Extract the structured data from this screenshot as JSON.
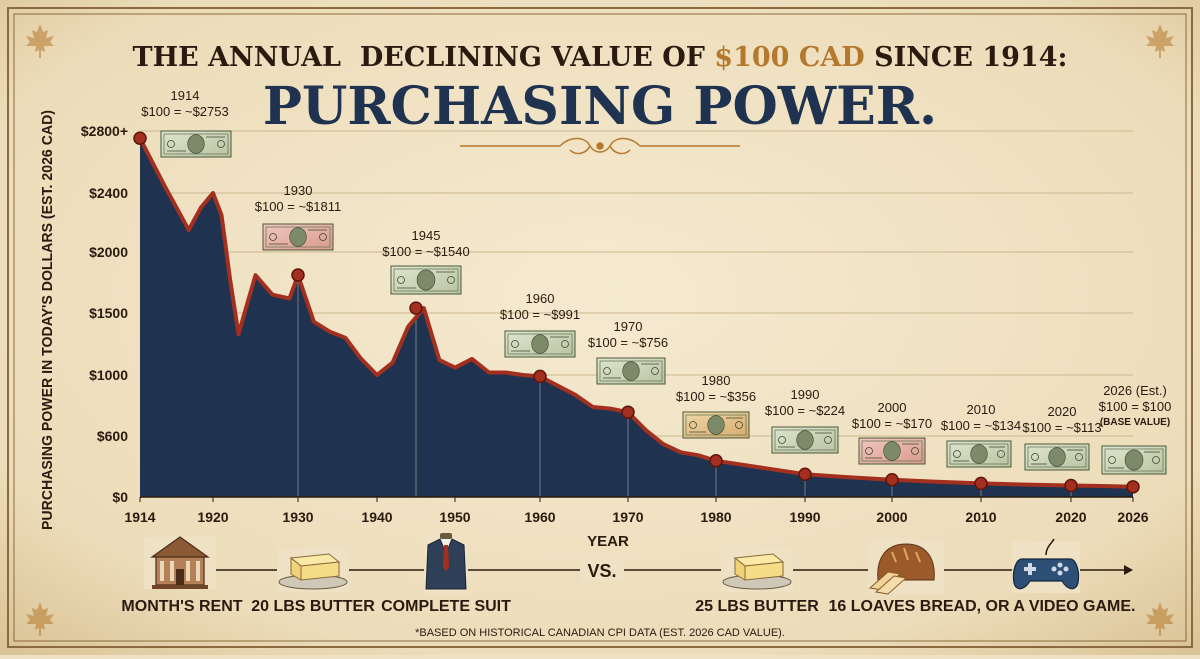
{
  "header": {
    "line1_prefix": "THE ANNUAL  DECLINING VALUE OF ",
    "line1_accent": "$100 CAD",
    "line1_suffix": " SINCE 1914:",
    "title": "PURCHASING POWER."
  },
  "colors": {
    "paper": "#efe2c4",
    "ink": "#2a1a10",
    "navy": "#1f3350",
    "line": "#a3301f",
    "accent": "#b5782c",
    "frame": "#8a6a3e"
  },
  "chart_data": {
    "type": "area",
    "title": "PURCHASING POWER.",
    "xlabel": "YEAR",
    "ylabel": "PURCHASING POWER IN TODAY'S DOLLARS (EST. 2026 CAD)",
    "ylim": [
      0,
      2800
    ],
    "xlim": [
      1914,
      2026
    ],
    "y_ticks": [
      {
        "value": 0,
        "label": "$0"
      },
      {
        "value": 600,
        "label": "$600"
      },
      {
        "value": 1000,
        "label": "$1000"
      },
      {
        "value": 1500,
        "label": "$1500"
      },
      {
        "value": 2000,
        "label": "$2000"
      },
      {
        "value": 2400,
        "label": "$2400"
      },
      {
        "value": 2800,
        "label": "$2800+"
      }
    ],
    "x_ticks": [
      1914,
      1920,
      1930,
      1940,
      1950,
      1960,
      1970,
      1980,
      1990,
      2000,
      2010,
      2020,
      2026
    ],
    "series": [
      {
        "name": "Purchasing power of $100 CAD",
        "x": [
          1914,
          1916,
          1918,
          1919,
          1920,
          1921,
          1922,
          1923,
          1925,
          1927,
          1929,
          1930,
          1932,
          1934,
          1936,
          1938,
          1940,
          1942,
          1944,
          1946,
          1948,
          1950,
          1952,
          1954,
          1956,
          1958,
          1960,
          1962,
          1964,
          1966,
          1968,
          1970,
          1972,
          1974,
          1976,
          1978,
          1980,
          1985,
          1990,
          1995,
          2000,
          2005,
          2010,
          2015,
          2020,
          2023,
          2026
        ],
        "y": [
          2753,
          2450,
          2150,
          2300,
          2400,
          2250,
          1780,
          1330,
          1810,
          1650,
          1620,
          1811,
          1430,
          1350,
          1300,
          1130,
          1000,
          1100,
          1390,
          1540,
          1120,
          1060,
          1130,
          1020,
          1020,
          1000,
          991,
          930,
          870,
          790,
          780,
          756,
          640,
          520,
          440,
          410,
          356,
          290,
          224,
          195,
          170,
          150,
          134,
          122,
          113,
          108,
          100
        ]
      }
    ],
    "annotations": [
      {
        "year": 1914,
        "value": 2753,
        "year_label": "1914",
        "text": "$100 = ~$2753",
        "note": ""
      },
      {
        "year": 1930,
        "value": 1811,
        "year_label": "1930",
        "text": "$100 = ~$1811",
        "note": ""
      },
      {
        "year": 1945,
        "value": 1540,
        "year_label": "1945",
        "text": "$100 = ~$1540",
        "note": ""
      },
      {
        "year": 1960,
        "value": 991,
        "year_label": "1960",
        "text": "$100 = ~$991",
        "note": ""
      },
      {
        "year": 1970,
        "value": 756,
        "year_label": "1970",
        "text": "$100 = ~$756",
        "note": ""
      },
      {
        "year": 1980,
        "value": 356,
        "year_label": "1980",
        "text": "$100 = ~$356",
        "note": ""
      },
      {
        "year": 1990,
        "value": 224,
        "year_label": "1990",
        "text": "$100 = ~$224",
        "note": ""
      },
      {
        "year": 2000,
        "value": 170,
        "year_label": "2000",
        "text": "$100 = ~$170",
        "note": ""
      },
      {
        "year": 2010,
        "value": 134,
        "year_label": "2010",
        "text": "$100 = ~$134",
        "note": ""
      },
      {
        "year": 2020,
        "value": 113,
        "year_label": "2020",
        "text": "$100 = ~$113",
        "note": ""
      },
      {
        "year": 2026,
        "value": 100,
        "year_label": "2026 (Est.)",
        "text": "$100 = $100",
        "note": "(BASE VALUE)"
      }
    ],
    "grid": true
  },
  "comparison": {
    "items": [
      {
        "label": "MONTH'S RENT",
        "icon": "house-icon"
      },
      {
        "label": "20 LBS BUTTER",
        "icon": "butter-icon"
      },
      {
        "label": "COMPLETE SUIT",
        "icon": "suit-icon"
      },
      {
        "label": "25 LBS BUTTER",
        "icon": "butter-icon"
      },
      {
        "label": "16 LOAVES BREAD, OR A VIDEO GAME.",
        "icon": "bread-icon"
      }
    ],
    "vs": "VS.",
    "extra_icon": "gamepad-icon"
  },
  "footnote": "*BASED ON HISTORICAL CANADIAN CPI DATA (EST. 2026 CAD VALUE)."
}
